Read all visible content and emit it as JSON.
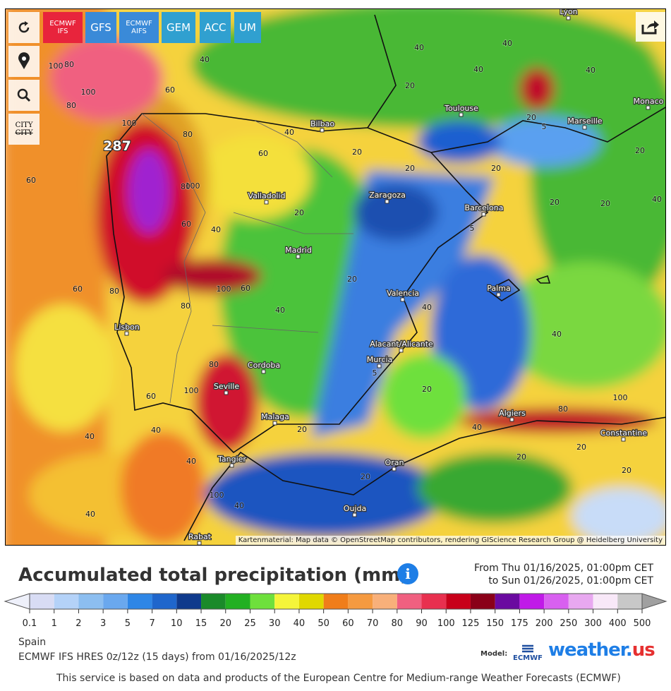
{
  "toolbar": {
    "models": [
      "ECMWF IFS",
      "GFS",
      "ECMWF AIFS",
      "GEM",
      "ACC",
      "UM"
    ],
    "city_toggle": [
      "CITY",
      "CITY"
    ]
  },
  "map": {
    "cities": [
      "Lyon",
      "Monaco",
      "Toulouse",
      "Marseille",
      "Bilbao",
      "Zaragoza",
      "Valladolid",
      "Barcelona",
      "Madrid",
      "Palma",
      "Valencia",
      "Lisbon",
      "Alacant/Alicante",
      "Cordoba",
      "Murcia",
      "Seville",
      "Algiers",
      "Malaga",
      "Constantine",
      "Tangier",
      "Oran",
      "Oujda",
      "Rabat"
    ],
    "contour_labels": [
      287,
      100,
      80,
      40,
      60,
      100,
      80,
      100,
      80,
      60,
      40,
      40,
      40,
      20,
      40,
      40,
      20,
      5,
      20,
      20,
      20,
      20,
      5,
      20,
      20,
      20,
      40,
      80,
      60,
      100,
      60,
      60,
      80,
      100,
      60,
      40,
      20,
      40,
      40,
      20,
      5,
      20,
      20,
      40,
      40,
      40,
      40,
      40,
      80,
      60,
      100,
      80,
      100,
      80,
      40,
      20,
      20,
      20,
      100,
      40
    ],
    "attribution": "Kartenmaterial: Map data © OpenStreetMap contributors, rendering GIScience Research Group @ Heidelberg University"
  },
  "legend": {
    "title": "Accumulated total precipitation (mm)",
    "period_from": "From Thu 01/16/2025, 01:00pm CET",
    "period_to": "to Sun 01/26/2025, 01:00pm CET",
    "labels": [
      0.1,
      1,
      2,
      3,
      5,
      7,
      10,
      15,
      20,
      25,
      30,
      40,
      50,
      60,
      70,
      80,
      90,
      100,
      125,
      150,
      175,
      200,
      250,
      300,
      400,
      500
    ],
    "colors": [
      "#d8dcf4",
      "#b4d2f8",
      "#8cbef0",
      "#6aa8ee",
      "#2e86e6",
      "#1f66cc",
      "#0f3a8c",
      "#1a8a2a",
      "#22b022",
      "#6ee03c",
      "#f5f53a",
      "#e0d800",
      "#f07d1a",
      "#f59a40",
      "#f8b07a",
      "#f06080",
      "#e8304f",
      "#c8001a",
      "#8a0018",
      "#6a0aa0",
      "#c01ae8",
      "#d860f0",
      "#e8a8f0",
      "#f8e8f8",
      "#c8c8c8"
    ],
    "under_color": "#eef0fa",
    "over_color": "#a0a0a0"
  },
  "footer": {
    "region": "Spain",
    "model_run": "ECMWF IFS HRES 0z/12z (15 days) from 01/16/2025/12z",
    "model_label": "Model:",
    "ecmwf_logo": "ECMWF",
    "brand": "weather.",
    "brand_suffix": "us",
    "disclaimer": "This service is based on data and products of the European Centre for Medium-range Weather Forecasts (ECMWF)"
  }
}
